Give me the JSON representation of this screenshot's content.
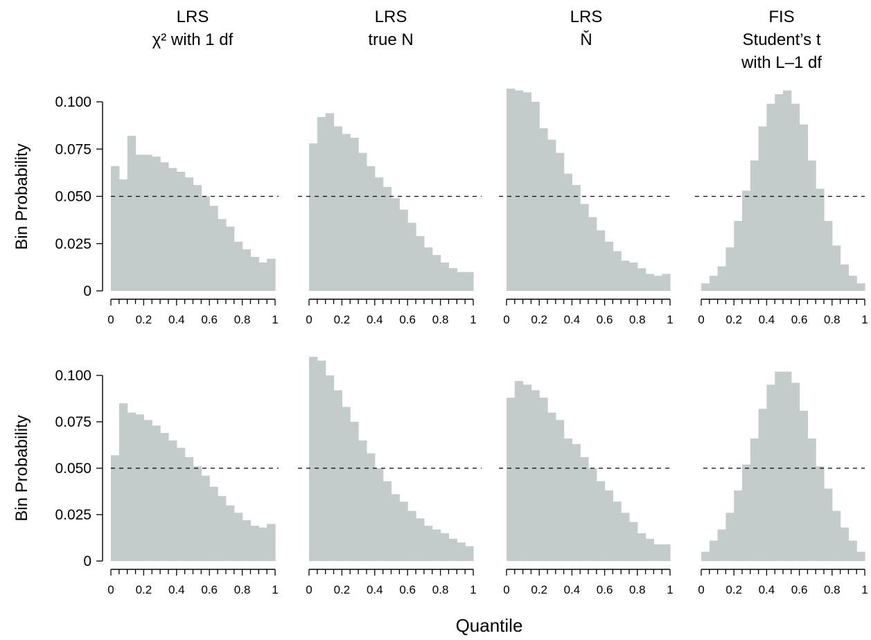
{
  "figure": {
    "xlabel": "Quantile",
    "ylabel": "Bin Probability"
  },
  "columns": [
    {
      "lines": [
        "LRS",
        "χ² with 1 df"
      ]
    },
    {
      "lines": [
        "LRS",
        "true N"
      ]
    },
    {
      "lines": [
        "LRS",
        "Ň"
      ]
    },
    {
      "lines": [
        "FIS",
        "Student’s t",
        "with L–1 df"
      ]
    }
  ],
  "colors": {
    "bar": "#c3cccb",
    "reference_line": "#000000"
  },
  "chart_data": [
    {
      "type": "bar",
      "row": 1,
      "col": 1,
      "title": "LRS χ² with 1 df",
      "reference_line": 0.05,
      "x_bin_edges": [
        0,
        0.05,
        0.1,
        0.15,
        0.2,
        0.25,
        0.3,
        0.35,
        0.4,
        0.45,
        0.5,
        0.55,
        0.6,
        0.65,
        0.7,
        0.75,
        0.8,
        0.85,
        0.9,
        0.95,
        1
      ],
      "values": [
        0.066,
        0.059,
        0.082,
        0.072,
        0.072,
        0.071,
        0.068,
        0.065,
        0.063,
        0.06,
        0.056,
        0.05,
        0.045,
        0.038,
        0.034,
        0.026,
        0.022,
        0.018,
        0.015,
        0.017
      ],
      "xlabel": "Quantile",
      "ylabel": "Bin Probability",
      "xlim": [
        0,
        1
      ],
      "ylim": [
        0,
        0.1
      ],
      "xticks": [
        "0",
        "0.2",
        "0.4",
        "0.6",
        "0.8",
        "1"
      ],
      "yticks": [
        "0",
        "0.025",
        "0.050",
        "0.075",
        "0.100"
      ]
    },
    {
      "type": "bar",
      "row": 1,
      "col": 2,
      "title": "LRS true N",
      "reference_line": 0.05,
      "x_bin_edges": [
        0,
        0.05,
        0.1,
        0.15,
        0.2,
        0.25,
        0.3,
        0.35,
        0.4,
        0.45,
        0.5,
        0.55,
        0.6,
        0.65,
        0.7,
        0.75,
        0.8,
        0.85,
        0.9,
        0.95,
        1
      ],
      "values": [
        0.078,
        0.092,
        0.094,
        0.087,
        0.083,
        0.081,
        0.073,
        0.066,
        0.06,
        0.055,
        0.049,
        0.043,
        0.036,
        0.029,
        0.023,
        0.019,
        0.015,
        0.012,
        0.01,
        0.01
      ],
      "xlim": [
        0,
        1
      ],
      "ylim": [
        0,
        0.1
      ],
      "xticks": [
        "0",
        "0.2",
        "0.4",
        "0.6",
        "0.8",
        "1"
      ]
    },
    {
      "type": "bar",
      "row": 1,
      "col": 3,
      "title": "LRS Ň",
      "reference_line": 0.05,
      "x_bin_edges": [
        0,
        0.05,
        0.1,
        0.15,
        0.2,
        0.25,
        0.3,
        0.35,
        0.4,
        0.45,
        0.5,
        0.55,
        0.6,
        0.65,
        0.7,
        0.75,
        0.8,
        0.85,
        0.9,
        0.95,
        1
      ],
      "values": [
        0.107,
        0.106,
        0.105,
        0.1,
        0.086,
        0.08,
        0.073,
        0.062,
        0.056,
        0.046,
        0.039,
        0.032,
        0.026,
        0.021,
        0.016,
        0.015,
        0.012,
        0.009,
        0.008,
        0.009
      ],
      "xlim": [
        0,
        1
      ],
      "ylim": [
        0,
        0.1
      ],
      "xticks": [
        "0",
        "0.2",
        "0.4",
        "0.6",
        "0.8",
        "1"
      ]
    },
    {
      "type": "bar",
      "row": 1,
      "col": 4,
      "title": "FIS Student’s t with L–1 df",
      "reference_line": 0.05,
      "x_bin_edges": [
        0,
        0.05,
        0.1,
        0.15,
        0.2,
        0.25,
        0.3,
        0.35,
        0.4,
        0.45,
        0.5,
        0.55,
        0.6,
        0.65,
        0.7,
        0.75,
        0.8,
        0.85,
        0.9,
        0.95,
        1
      ],
      "values": [
        0.004,
        0.008,
        0.013,
        0.023,
        0.037,
        0.053,
        0.069,
        0.087,
        0.099,
        0.104,
        0.106,
        0.099,
        0.088,
        0.069,
        0.054,
        0.037,
        0.024,
        0.014,
        0.008,
        0.004
      ],
      "xlim": [
        0,
        1
      ],
      "ylim": [
        0,
        0.1
      ],
      "xticks": [
        "0",
        "0.2",
        "0.4",
        "0.6",
        "0.8",
        "1"
      ]
    },
    {
      "type": "bar",
      "row": 2,
      "col": 1,
      "title": "LRS χ² with 1 df",
      "reference_line": 0.05,
      "x_bin_edges": [
        0,
        0.05,
        0.1,
        0.15,
        0.2,
        0.25,
        0.3,
        0.35,
        0.4,
        0.45,
        0.5,
        0.55,
        0.6,
        0.65,
        0.7,
        0.75,
        0.8,
        0.85,
        0.9,
        0.95,
        1
      ],
      "values": [
        0.057,
        0.085,
        0.08,
        0.079,
        0.076,
        0.073,
        0.069,
        0.065,
        0.061,
        0.056,
        0.051,
        0.046,
        0.04,
        0.035,
        0.03,
        0.026,
        0.022,
        0.019,
        0.018,
        0.02
      ],
      "xlabel": "Quantile",
      "ylabel": "Bin Probability",
      "xlim": [
        0,
        1
      ],
      "ylim": [
        0,
        0.1
      ],
      "xticks": [
        "0",
        "0.2",
        "0.4",
        "0.6",
        "0.8",
        "1"
      ],
      "yticks": [
        "0",
        "0.025",
        "0.050",
        "0.075",
        "0.100"
      ]
    },
    {
      "type": "bar",
      "row": 2,
      "col": 2,
      "title": "LRS true N",
      "reference_line": 0.05,
      "x_bin_edges": [
        0,
        0.05,
        0.1,
        0.15,
        0.2,
        0.25,
        0.3,
        0.35,
        0.4,
        0.45,
        0.5,
        0.55,
        0.6,
        0.65,
        0.7,
        0.75,
        0.8,
        0.85,
        0.9,
        0.95,
        1
      ],
      "values": [
        0.11,
        0.108,
        0.1,
        0.092,
        0.083,
        0.075,
        0.065,
        0.058,
        0.05,
        0.043,
        0.036,
        0.032,
        0.027,
        0.023,
        0.019,
        0.017,
        0.015,
        0.012,
        0.01,
        0.008
      ],
      "xlim": [
        0,
        1
      ],
      "ylim": [
        0,
        0.1
      ],
      "xticks": [
        "0",
        "0.2",
        "0.4",
        "0.6",
        "0.8",
        "1"
      ]
    },
    {
      "type": "bar",
      "row": 2,
      "col": 3,
      "title": "LRS Ň",
      "reference_line": 0.05,
      "x_bin_edges": [
        0,
        0.05,
        0.1,
        0.15,
        0.2,
        0.25,
        0.3,
        0.35,
        0.4,
        0.45,
        0.5,
        0.55,
        0.6,
        0.65,
        0.7,
        0.75,
        0.8,
        0.85,
        0.9,
        0.95,
        1
      ],
      "values": [
        0.088,
        0.097,
        0.095,
        0.092,
        0.088,
        0.08,
        0.076,
        0.066,
        0.063,
        0.056,
        0.05,
        0.043,
        0.038,
        0.032,
        0.026,
        0.021,
        0.015,
        0.012,
        0.009,
        0.009
      ],
      "xlim": [
        0,
        1
      ],
      "ylim": [
        0,
        0.1
      ],
      "xticks": [
        "0",
        "0.2",
        "0.4",
        "0.6",
        "0.8",
        "1"
      ]
    },
    {
      "type": "bar",
      "row": 2,
      "col": 4,
      "title": "FIS Student’s t with L–1 df",
      "reference_line": 0.05,
      "x_bin_edges": [
        0,
        0.05,
        0.1,
        0.15,
        0.2,
        0.25,
        0.3,
        0.35,
        0.4,
        0.45,
        0.5,
        0.55,
        0.6,
        0.65,
        0.7,
        0.75,
        0.8,
        0.85,
        0.9,
        0.95,
        1
      ],
      "values": [
        0.005,
        0.011,
        0.017,
        0.026,
        0.038,
        0.052,
        0.066,
        0.082,
        0.095,
        0.102,
        0.102,
        0.096,
        0.081,
        0.066,
        0.051,
        0.039,
        0.027,
        0.018,
        0.011,
        0.005
      ],
      "xlim": [
        0,
        1
      ],
      "ylim": [
        0,
        0.1
      ],
      "xticks": [
        "0",
        "0.2",
        "0.4",
        "0.6",
        "0.8",
        "1"
      ]
    }
  ]
}
